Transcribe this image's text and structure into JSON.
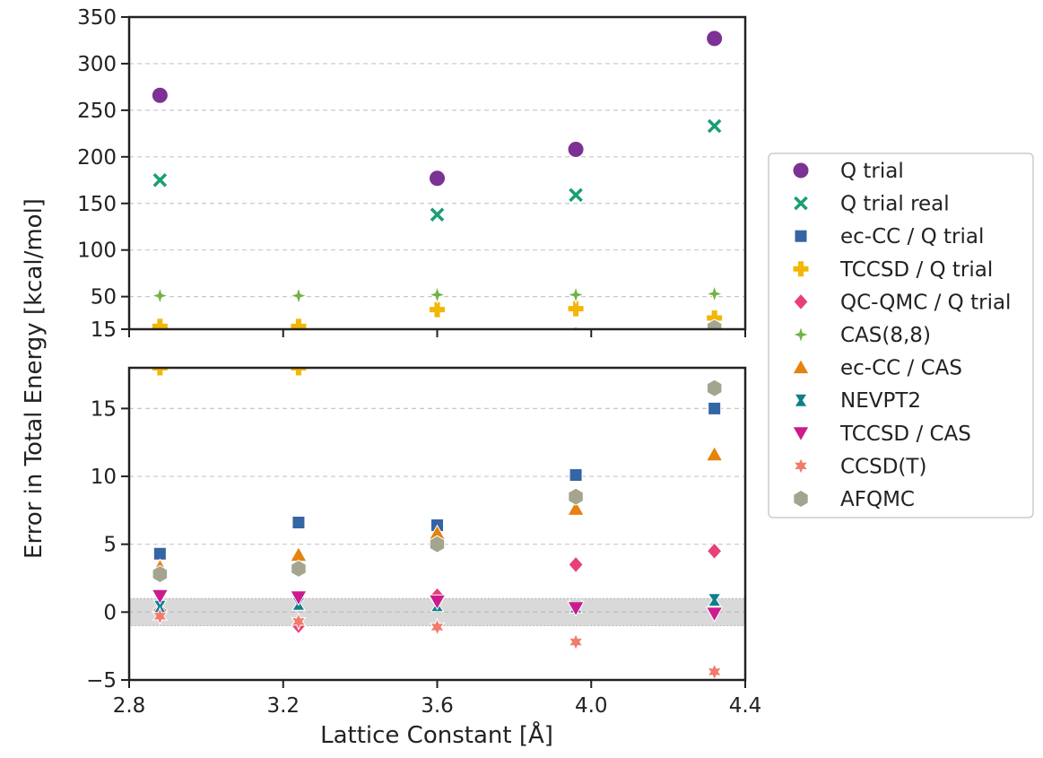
{
  "chart_data": {
    "type": "scatter",
    "xlabel": "Lattice Constant [Å]",
    "ylabel": "Error in Total Energy [kcal/mol]",
    "xlim": [
      2.8,
      4.4
    ],
    "xticks": [
      "2.8",
      "3.2",
      "3.6",
      "4.0",
      "4.4"
    ],
    "grid": "horizontal dashed",
    "legend_position": "right",
    "panels": [
      {
        "name": "top",
        "ylim": [
          15,
          350
        ],
        "yticks": [
          "15",
          "50",
          "100",
          "150",
          "200",
          "250",
          "300",
          "350"
        ],
        "series": [
          "Q trial",
          "Q trial real",
          "TCCSD / Q trial",
          "CAS(8,8)",
          "AFQMC"
        ]
      },
      {
        "name": "bottom",
        "ylim": [
          -5,
          18
        ],
        "yticks": [
          "−5",
          "0",
          "5",
          "10",
          "15"
        ],
        "band": [
          -1,
          1
        ],
        "series": [
          "ec-CC / Q trial",
          "QC-QMC / Q trial",
          "ec-CC / CAS",
          "NEVPT2",
          "TCCSD / CAS",
          "CCSD(T)",
          "AFQMC",
          "CAS(8,8)",
          "TCCSD / Q trial"
        ]
      }
    ],
    "series": [
      {
        "name": "Q trial",
        "marker": "circle",
        "color": "#7b3294",
        "x": [
          2.88,
          3.6,
          3.96,
          4.32
        ],
        "y": [
          266,
          177,
          208,
          327
        ]
      },
      {
        "name": "Q trial real",
        "marker": "x",
        "color": "#1a9e77",
        "x": [
          2.88,
          3.6,
          3.96,
          4.32
        ],
        "y": [
          175,
          138,
          159,
          233
        ]
      },
      {
        "name": "ec-CC / Q trial",
        "marker": "square",
        "color": "#3465a4",
        "x": [
          2.88,
          3.24,
          3.6,
          3.96,
          4.32
        ],
        "y": [
          4.3,
          6.6,
          6.4,
          10.1,
          15.0
        ]
      },
      {
        "name": "TCCSD / Q trial",
        "marker": "plus",
        "color": "#f2b705",
        "x": [
          2.88,
          3.24,
          3.6,
          3.96,
          4.32
        ],
        "y": [
          18,
          18,
          36,
          37,
          27
        ]
      },
      {
        "name": "QC-QMC / Q trial",
        "marker": "diamond",
        "color": "#e7407b",
        "x": [
          2.88,
          3.24,
          3.6,
          3.96,
          4.32
        ],
        "y": [
          0.1,
          -1.0,
          1.2,
          3.5,
          4.5
        ]
      },
      {
        "name": "CAS(8,8)",
        "marker": "star4",
        "color": "#73b341",
        "x": [
          2.88,
          3.24,
          3.6,
          3.96,
          4.32
        ],
        "y": [
          51,
          51,
          52,
          52,
          53
        ]
      },
      {
        "name": "ec-CC / CAS",
        "marker": "triangle-up",
        "color": "#e6820e",
        "x": [
          2.88,
          3.24,
          3.6,
          3.96,
          4.32
        ],
        "y": [
          3.3,
          4.2,
          5.8,
          7.6,
          11.6
        ]
      },
      {
        "name": "NEVPT2",
        "marker": "hourglass",
        "color": "#0f7f8a",
        "x": [
          2.88,
          3.24,
          3.6,
          3.96,
          4.32
        ],
        "y": [
          0.4,
          0.6,
          0.5,
          0.4,
          0.9
        ]
      },
      {
        "name": "TCCSD / CAS",
        "marker": "triangle-down",
        "color": "#cc1b8e",
        "x": [
          2.88,
          3.24,
          3.6,
          3.96,
          4.32
        ],
        "y": [
          1.2,
          1.1,
          0.8,
          0.3,
          -0.1
        ]
      },
      {
        "name": "CCSD(T)",
        "marker": "star6",
        "color": "#f07b6b",
        "x": [
          2.88,
          3.24,
          3.6,
          3.96,
          4.32
        ],
        "y": [
          -0.3,
          -0.7,
          -1.1,
          -2.2,
          -4.4
        ]
      },
      {
        "name": "AFQMC",
        "marker": "hexagon",
        "color": "#a4a58e",
        "x": [
          2.88,
          3.24,
          3.6,
          3.96,
          4.32
        ],
        "y": [
          2.8,
          3.2,
          5.0,
          8.5,
          16.5
        ]
      }
    ]
  }
}
